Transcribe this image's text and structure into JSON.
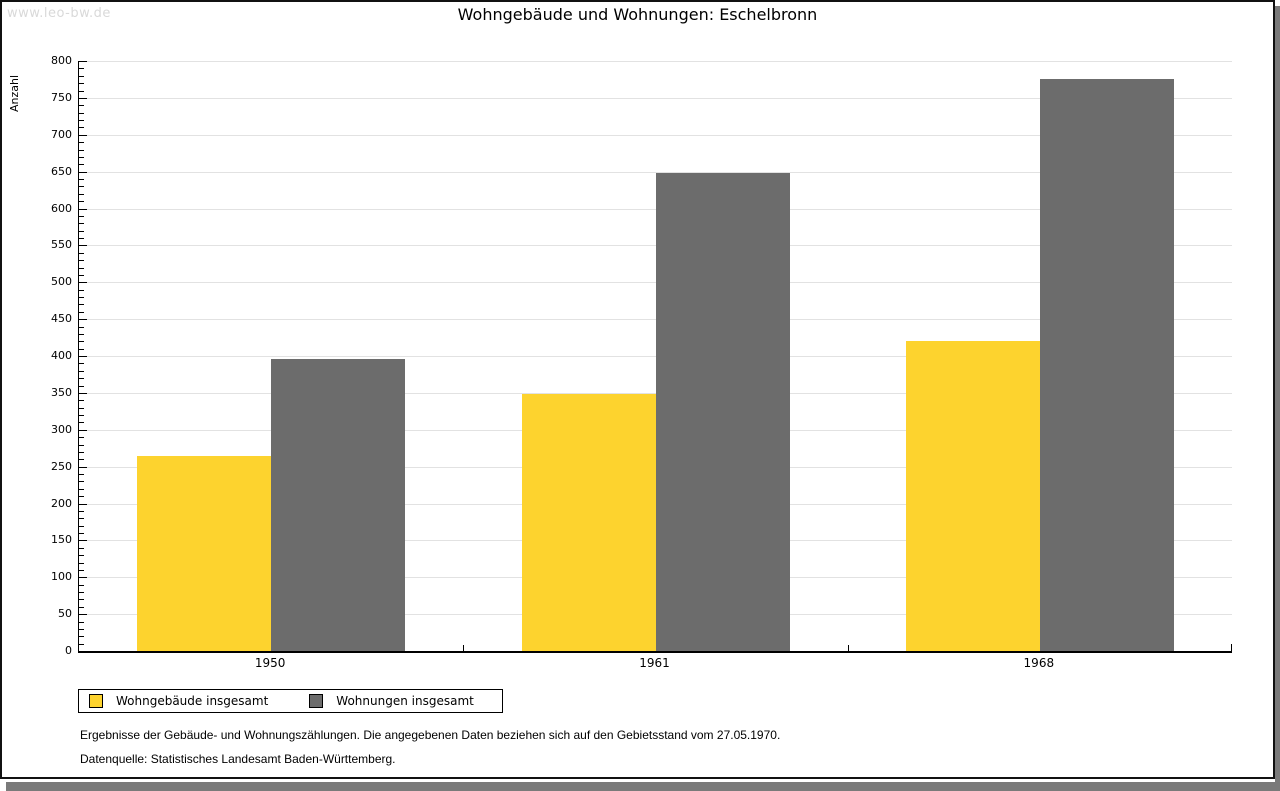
{
  "watermark": "www.leo-bw.de",
  "chart_data": {
    "type": "bar",
    "title": "Wohngebäude und Wohnungen: Eschelbronn",
    "ylabel": "Anzahl",
    "xlabel": "",
    "categories": [
      "1950",
      "1961",
      "1968"
    ],
    "series": [
      {
        "name": "Wohngebäude insgesamt",
        "color": "#fdd32e",
        "values": [
          264,
          348,
          421
        ]
      },
      {
        "name": "Wohnungen insgesamt",
        "color": "#6c6c6c",
        "values": [
          396,
          648,
          775
        ]
      }
    ],
    "ylim": [
      0,
      800
    ],
    "y_major_step": 50,
    "y_minor_step": 10,
    "y_ticks": [
      0,
      50,
      100,
      150,
      200,
      250,
      300,
      350,
      400,
      450,
      500,
      550,
      600,
      650,
      700,
      750,
      800
    ],
    "grid": true,
    "legend_position": "bottom-left"
  },
  "notes": {
    "line1": "Ergebnisse der Gebäude- und Wohnungszählungen. Die angegebenen Daten beziehen sich auf den Gebietsstand vom 27.05.1970.",
    "line2": "Datenquelle: Statistisches Landesamt Baden-Württemberg."
  }
}
